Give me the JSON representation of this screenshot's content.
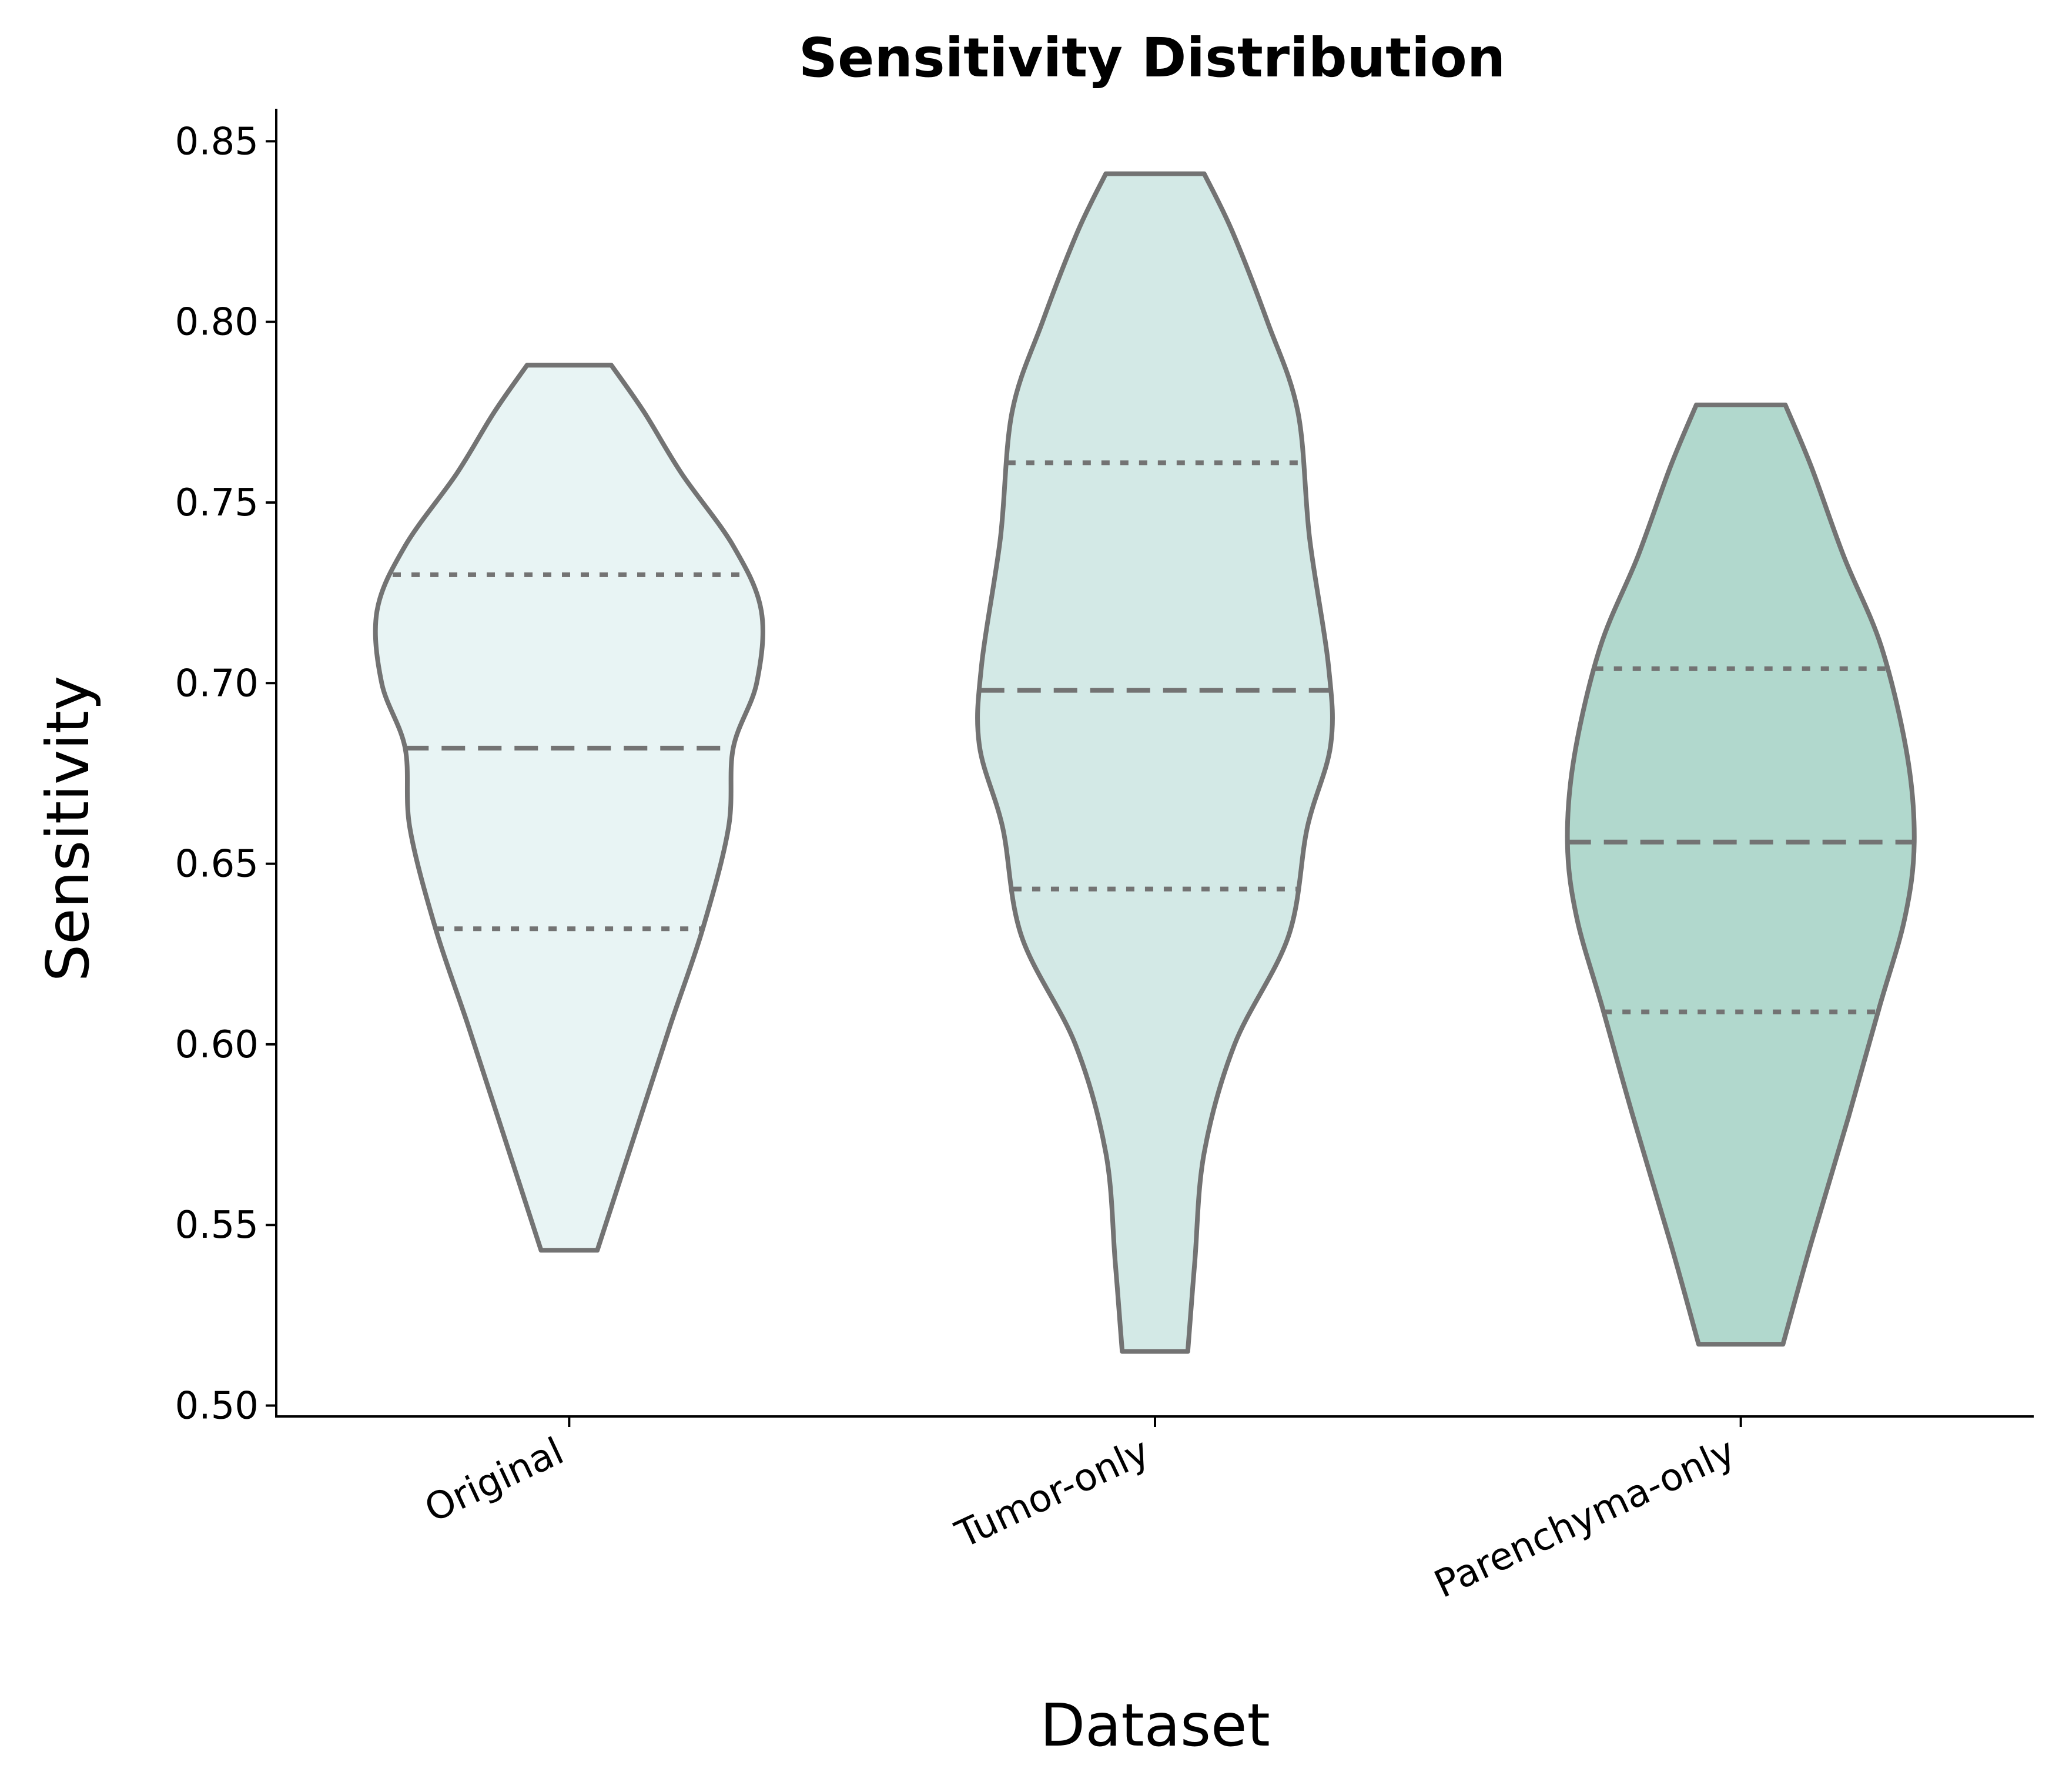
{
  "chart_data": {
    "type": "violin",
    "title": "Sensitivity Distribution",
    "xlabel": "Dataset",
    "ylabel": "Sensitivity",
    "ylim": [
      0.497,
      0.859
    ],
    "yticks": [
      "0.50",
      "0.55",
      "0.60",
      "0.65",
      "0.70",
      "0.75",
      "0.80",
      "0.85"
    ],
    "ytick_values": [
      0.5,
      0.55,
      0.6,
      0.65,
      0.7,
      0.75,
      0.8,
      0.85
    ],
    "categories": [
      "Original",
      "Tumor-only",
      "Parenchyma-only"
    ],
    "grid": false,
    "legend": "none",
    "stroke_color": "#737373",
    "series": [
      {
        "category": "Original",
        "color": "#e8f4f4",
        "min": 0.543,
        "max": 0.788,
        "q1": 0.632,
        "median": 0.682,
        "q3": 0.73,
        "density_profile": [
          [
            0.543,
            0.12
          ],
          [
            0.575,
            0.28
          ],
          [
            0.605,
            0.43
          ],
          [
            0.632,
            0.57
          ],
          [
            0.66,
            0.68
          ],
          [
            0.682,
            0.7
          ],
          [
            0.7,
            0.8
          ],
          [
            0.72,
            0.82
          ],
          [
            0.738,
            0.7
          ],
          [
            0.758,
            0.48
          ],
          [
            0.775,
            0.32
          ],
          [
            0.788,
            0.18
          ]
        ]
      },
      {
        "category": "Tumor-only",
        "color": "#d3e9e6",
        "min": 0.515,
        "max": 0.841,
        "q1": 0.643,
        "median": 0.698,
        "q3": 0.761,
        "density_profile": [
          [
            0.515,
            0.14
          ],
          [
            0.54,
            0.17
          ],
          [
            0.57,
            0.21
          ],
          [
            0.6,
            0.34
          ],
          [
            0.63,
            0.57
          ],
          [
            0.66,
            0.65
          ],
          [
            0.683,
            0.75
          ],
          [
            0.705,
            0.74
          ],
          [
            0.74,
            0.66
          ],
          [
            0.775,
            0.61
          ],
          [
            0.8,
            0.48
          ],
          [
            0.825,
            0.33
          ],
          [
            0.841,
            0.21
          ]
        ]
      },
      {
        "category": "Parenchyma-only",
        "color": "#b1d8cd",
        "min": 0.517,
        "max": 0.777,
        "q1": 0.609,
        "median": 0.656,
        "q3": 0.704,
        "density_profile": [
          [
            0.517,
            0.18
          ],
          [
            0.545,
            0.3
          ],
          [
            0.58,
            0.46
          ],
          [
            0.61,
            0.59
          ],
          [
            0.635,
            0.7
          ],
          [
            0.656,
            0.74
          ],
          [
            0.68,
            0.71
          ],
          [
            0.71,
            0.6
          ],
          [
            0.735,
            0.44
          ],
          [
            0.76,
            0.3
          ],
          [
            0.777,
            0.19
          ]
        ]
      }
    ]
  }
}
